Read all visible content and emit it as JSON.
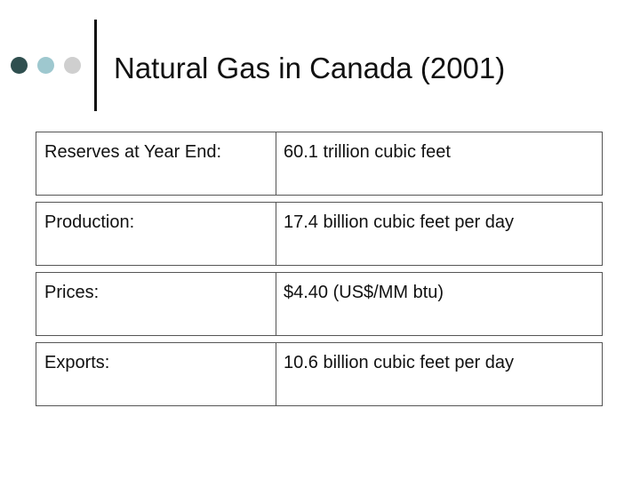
{
  "slide": {
    "title": "Natural Gas in Canada (2001)"
  },
  "decoration": {
    "dot_colors": [
      "#2f4f4f",
      "#9ec8cf",
      "#cfcfcf"
    ],
    "rule_color": "#111111"
  },
  "table": {
    "rows": [
      {
        "label": "Reserves at Year End:",
        "value": "60.1 trillion cubic feet"
      },
      {
        "label": "Production:",
        "value": "17.4 billion cubic feet per day"
      },
      {
        "label": "Prices:",
        "value": "$4.40 (US$/MM btu)"
      },
      {
        "label": "Exports:",
        "value": "10.6 billion cubic feet per day"
      }
    ]
  }
}
